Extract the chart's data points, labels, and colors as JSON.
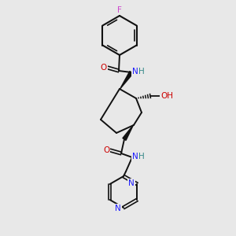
{
  "bg_color": "#e8e8e8",
  "colors": {
    "N": "#1a1aff",
    "O": "#cc0000",
    "F": "#cc44cc",
    "H": "#338888",
    "bond": "#111111"
  },
  "figsize": [
    3.0,
    3.0
  ],
  "dpi": 100
}
